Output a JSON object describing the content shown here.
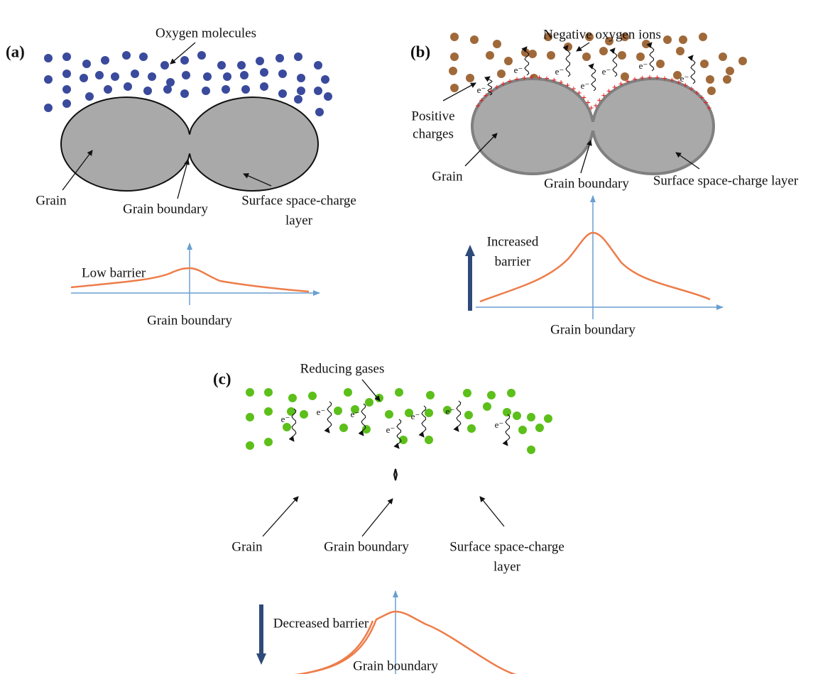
{
  "panels": [
    {
      "label": "(a)",
      "gas_label": "Oxygen molecules",
      "grain_label": "Grain",
      "boundary_label": "Grain boundary",
      "layer_label": [
        "Surface space-charge",
        "layer"
      ],
      "barrier_label": [
        "Low barrier"
      ],
      "axis_label": "Grain boundary"
    },
    {
      "label": "(b)",
      "gas_label": "Negative oxygen ions",
      "charge_label": [
        "Positive",
        "charges"
      ],
      "grain_label": "Grain",
      "boundary_label": "Grain boundary",
      "layer_label": [
        "Surface space-charge layer"
      ],
      "barrier_label": [
        "Increased",
        "barrier"
      ],
      "axis_label": "Grain boundary",
      "electron_label": "e⁻"
    },
    {
      "label": "(c)",
      "gas_label": "Reducing gases",
      "grain_label": "Grain",
      "boundary_label": "Grain boundary",
      "layer_label": [
        "Surface space-charge",
        "layer"
      ],
      "barrier_label": [
        "Decreased barrier"
      ],
      "axis_label": "Grain boundary",
      "electron_label": "e⁻"
    }
  ]
}
